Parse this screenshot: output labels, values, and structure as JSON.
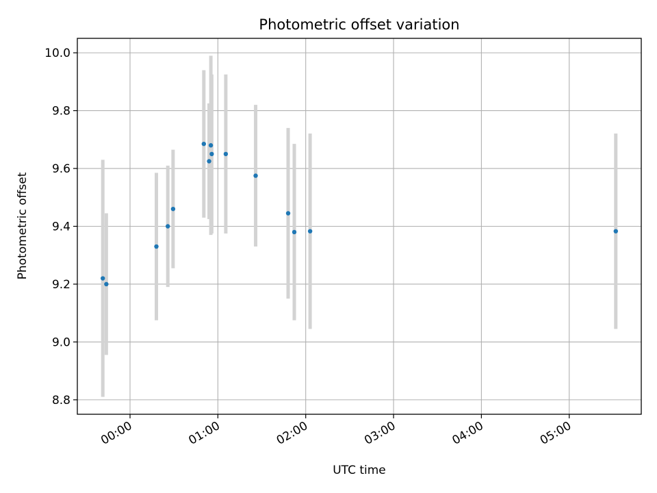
{
  "chart_data": {
    "type": "scatter",
    "title": "Photometric offset variation",
    "xlabel": "UTC time",
    "ylabel": "Photometric offset",
    "xlim_hours": [
      -0.6,
      5.82
    ],
    "ylim": [
      8.75,
      10.05
    ],
    "grid": true,
    "legend": "none",
    "x_ticks": [
      {
        "hour": 0,
        "label": "00:00"
      },
      {
        "hour": 1,
        "label": "01:00"
      },
      {
        "hour": 2,
        "label": "02:00"
      },
      {
        "hour": 3,
        "label": "03:00"
      },
      {
        "hour": 4,
        "label": "04:00"
      },
      {
        "hour": 5,
        "label": "05:00"
      }
    ],
    "y_ticks": [
      {
        "value": 8.8,
        "label": "8.8"
      },
      {
        "value": 9.0,
        "label": "9.0"
      },
      {
        "value": 9.2,
        "label": "9.2"
      },
      {
        "value": 9.4,
        "label": "9.4"
      },
      {
        "value": 9.6,
        "label": "9.6"
      },
      {
        "value": 9.8,
        "label": "9.8"
      },
      {
        "value": 10.0,
        "label": "10.0"
      }
    ],
    "points": [
      {
        "hour": -0.31,
        "y": 9.22,
        "err": 0.41
      },
      {
        "hour": -0.27,
        "y": 9.2,
        "err": 0.245
      },
      {
        "hour": 0.3,
        "y": 9.33,
        "err": 0.255
      },
      {
        "hour": 0.43,
        "y": 9.4,
        "err": 0.21
      },
      {
        "hour": 0.49,
        "y": 9.46,
        "err": 0.205
      },
      {
        "hour": 0.84,
        "y": 9.685,
        "err": 0.255
      },
      {
        "hour": 0.9,
        "y": 9.625,
        "err": 0.2
      },
      {
        "hour": 0.92,
        "y": 9.68,
        "err": 0.31
      },
      {
        "hour": 0.93,
        "y": 9.65,
        "err": 0.275
      },
      {
        "hour": 1.09,
        "y": 9.65,
        "err": 0.275
      },
      {
        "hour": 1.43,
        "y": 9.575,
        "err": 0.245
      },
      {
        "hour": 1.8,
        "y": 9.445,
        "err": 0.295
      },
      {
        "hour": 1.87,
        "y": 9.38,
        "err": 0.305
      },
      {
        "hour": 2.05,
        "y": 9.383,
        "err": 0.338
      },
      {
        "hour": 5.53,
        "y": 9.383,
        "err": 0.338
      }
    ],
    "colors": {
      "point": "#1f77b4",
      "errorbar": "#d3d3d3",
      "grid": "#b0b0b0",
      "axes": "#000000"
    }
  }
}
